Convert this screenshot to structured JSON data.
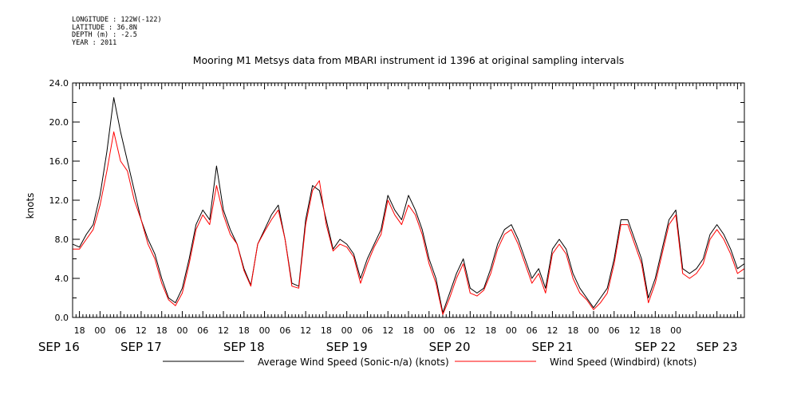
{
  "header": {
    "longitude": "LONGITUDE : 122W(-122)",
    "latitude": "LATITUDE : 36.8N",
    "depth": "DEPTH (m) : -2.5",
    "year": "YEAR : 2011"
  },
  "chart_data": {
    "type": "line",
    "title": "Mooring M1 Metsys data from MBARI instrument id 1396 at original sampling intervals",
    "ylabel": "knots",
    "xlabel": "",
    "ylim": [
      0,
      24
    ],
    "y_ticks": [
      "0.0",
      "4.0",
      "8.0",
      "12.0",
      "16.0",
      "20.0",
      "24.0"
    ],
    "x_range_hours": [
      -8,
      188
    ],
    "hour_ticks": [
      "18",
      "00",
      "06",
      "12",
      "18",
      "00",
      "06",
      "12",
      "18",
      "00",
      "06",
      "12",
      "18",
      "00",
      "06",
      "12",
      "18",
      "00",
      "06",
      "12",
      "18",
      "00",
      "06",
      "12",
      "18",
      "00",
      "06",
      "12",
      "18",
      "00"
    ],
    "date_ticks": [
      {
        "label": "SEP 16",
        "hour": -12
      },
      {
        "label": "SEP 17",
        "hour": 12
      },
      {
        "label": "SEP 18",
        "hour": 42
      },
      {
        "label": "SEP 19",
        "hour": 72
      },
      {
        "label": "SEP 20",
        "hour": 102
      },
      {
        "label": "SEP 21",
        "hour": 132
      },
      {
        "label": "SEP 22",
        "hour": 162
      },
      {
        "label": "SEP 23",
        "hour": 180
      }
    ],
    "grid": false,
    "legend_position": "bottom",
    "series": [
      {
        "name": "Average Wind Speed (Sonic-n/a) (knots)",
        "color": "#000000",
        "x": [
          -8,
          -6,
          -4,
          -2,
          0,
          2,
          4,
          6,
          8,
          10,
          12,
          14,
          16,
          18,
          20,
          22,
          24,
          26,
          28,
          30,
          32,
          34,
          36,
          38,
          40,
          42,
          44,
          46,
          48,
          50,
          52,
          54,
          56,
          58,
          60,
          62,
          64,
          66,
          68,
          70,
          72,
          74,
          76,
          78,
          80,
          82,
          84,
          86,
          88,
          90,
          92,
          94,
          96,
          98,
          100,
          102,
          104,
          106,
          108,
          110,
          112,
          114,
          116,
          118,
          120,
          122,
          124,
          126,
          128,
          130,
          132,
          134,
          136,
          138,
          140,
          142,
          144,
          146,
          148,
          150,
          152,
          154,
          156,
          158,
          160,
          162,
          164,
          166,
          168,
          170,
          172,
          174,
          176,
          178,
          180,
          182,
          184,
          186,
          188
        ],
        "y": [
          7.5,
          7.2,
          8.5,
          9.5,
          12.5,
          17,
          22.5,
          19,
          16,
          13,
          10,
          8,
          6.5,
          4,
          2,
          1.5,
          3,
          6,
          9.5,
          11,
          10,
          15.5,
          11,
          9,
          7.5,
          5,
          3.3,
          7.5,
          9,
          10.5,
          11.5,
          8,
          3.5,
          3.2,
          10,
          13.5,
          13,
          10,
          7,
          8,
          7.5,
          6.5,
          4,
          6,
          7.5,
          9,
          12.5,
          11,
          10,
          12.5,
          11,
          9,
          6,
          4,
          0.5,
          2.5,
          4.5,
          6,
          3,
          2.5,
          3,
          5,
          7.5,
          9,
          9.5,
          8,
          6,
          4,
          5,
          3,
          7,
          8,
          7,
          4.5,
          3,
          2,
          1,
          2,
          3,
          6,
          10,
          10,
          8,
          6,
          2,
          4,
          7,
          10,
          11,
          5,
          4.5,
          5,
          6,
          8.5,
          9.5,
          8.5,
          7,
          5,
          5.5
        ],
        "gaps_after_hours": [
          46,
          106
        ]
      },
      {
        "name": "Wind Speed (Windbird) (knots)",
        "color": "#ff0000",
        "x": [
          -8,
          -6,
          -4,
          -2,
          0,
          2,
          4,
          6,
          8,
          10,
          12,
          14,
          16,
          18,
          20,
          22,
          24,
          26,
          28,
          30,
          32,
          34,
          36,
          38,
          40,
          42,
          44,
          46,
          48,
          50,
          52,
          54,
          56,
          58,
          60,
          62,
          64,
          66,
          68,
          70,
          72,
          74,
          76,
          78,
          80,
          82,
          84,
          86,
          88,
          90,
          92,
          94,
          96,
          98,
          100,
          102,
          104,
          106,
          108,
          110,
          112,
          114,
          116,
          118,
          120,
          122,
          124,
          126,
          128,
          130,
          132,
          134,
          136,
          138,
          140,
          142,
          144,
          146,
          148,
          150,
          152,
          154,
          156,
          158,
          160,
          162,
          164,
          166,
          168,
          170,
          172,
          174,
          176,
          178,
          180,
          182,
          184,
          186,
          188
        ],
        "y": [
          7.0,
          7.0,
          8.0,
          9.0,
          11.5,
          15,
          19,
          16,
          15,
          12,
          10,
          7.5,
          6,
          3.5,
          1.8,
          1.2,
          2.5,
          5.5,
          9,
          10.5,
          9.5,
          13.5,
          10.5,
          8.5,
          7.5,
          4.8,
          3.2,
          7.5,
          8.8,
          10,
          11,
          8,
          3.2,
          3.0,
          9.5,
          13,
          14,
          9.5,
          6.8,
          7.5,
          7.2,
          6.2,
          3.5,
          5.5,
          7.2,
          8.5,
          12,
          10.5,
          9.5,
          11.5,
          10.5,
          8.5,
          5.5,
          3.5,
          0.3,
          2.0,
          4.0,
          5.5,
          2.5,
          2.2,
          2.8,
          4.5,
          7,
          8.5,
          9,
          7.5,
          5.5,
          3.5,
          4.5,
          2.5,
          6.5,
          7.5,
          6.5,
          4,
          2.5,
          1.8,
          0.8,
          1.5,
          2.5,
          5.5,
          9.5,
          9.5,
          7.5,
          5.5,
          1.5,
          3.5,
          6.5,
          9.5,
          10.5,
          4.5,
          4,
          4.5,
          5.5,
          8,
          9,
          8,
          6.5,
          4.5,
          5
        ],
        "gaps_after_hours": [
          46,
          106
        ]
      }
    ]
  }
}
